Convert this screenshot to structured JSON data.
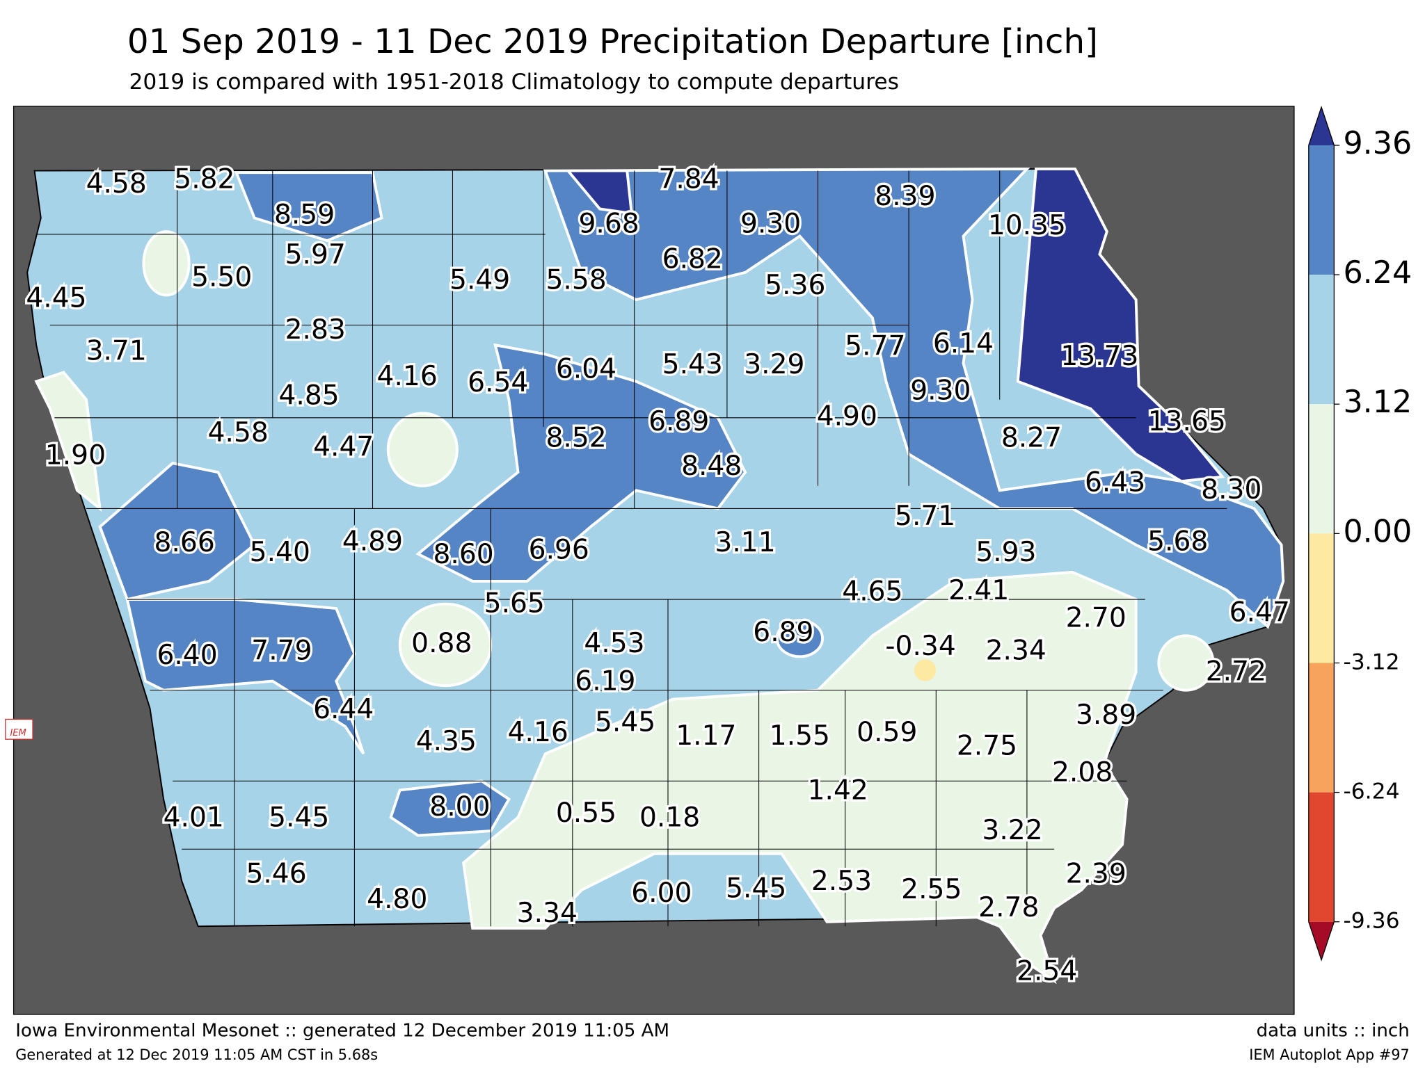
{
  "header": {
    "title": "01 Sep 2019 - 11 Dec 2019 Precipitation Departure [inch]",
    "subtitle": "2019 is compared with 1951-2018 Climatology to compute departures"
  },
  "map": {
    "logo": "IEM",
    "labels": [
      "4.58",
      "5.82",
      "8.59",
      "7.84",
      "9.68",
      "9.30",
      "8.39",
      "10.35",
      "5.97",
      "5.50",
      "5.49",
      "5.58",
      "6.82",
      "5.36",
      "4.45",
      "2.83",
      "3.71",
      "4.16",
      "6.54",
      "6.04",
      "5.43",
      "3.29",
      "5.77",
      "6.14",
      "13.73",
      "4.85",
      "9.30",
      "4.90",
      "6.89",
      "8.52",
      "4.58",
      "4.47",
      "1.90",
      "8.48",
      "8.27",
      "13.65",
      "6.43",
      "8.30",
      "5.71",
      "8.66",
      "5.40",
      "4.89",
      "8.60",
      "6.96",
      "3.11",
      "5.93",
      "5.68",
      "5.65",
      "4.65",
      "2.41",
      "2.70",
      "6.47",
      "0.88",
      "4.53",
      "6.89",
      "-0.34",
      "2.34",
      "6.40",
      "7.79",
      "6.19",
      "2.72",
      "6.44",
      "4.35",
      "4.16",
      "5.45",
      "1.17",
      "1.55",
      "0.59",
      "2.75",
      "3.89",
      "2.08",
      "1.42",
      "8.00",
      "0.55",
      "0.18",
      "4.01",
      "5.45",
      "3.22",
      "2.39",
      "5.46",
      "4.80",
      "6.00",
      "5.45",
      "2.53",
      "2.55",
      "3.34",
      "2.78",
      "2.54"
    ]
  },
  "colorbar": {
    "ticks": [
      "9.36",
      "6.24",
      "3.12",
      "0.00",
      "-3.12",
      "-6.24",
      "-9.36"
    ],
    "colors": [
      "#2b3592",
      "#5585c5",
      "#a6d3e8",
      "#e9f5e5",
      "#fde9a2",
      "#f7a35c",
      "#e0472e",
      "#a50a26"
    ]
  },
  "footer": {
    "left": "Iowa Environmental Mesonet :: generated 12 December 2019 11:05 AM",
    "left_small": "Generated at 12 Dec 2019 11:05 AM CST in 5.68s",
    "right": "data units :: inch",
    "right_small": "IEM Autoplot App #97"
  }
}
